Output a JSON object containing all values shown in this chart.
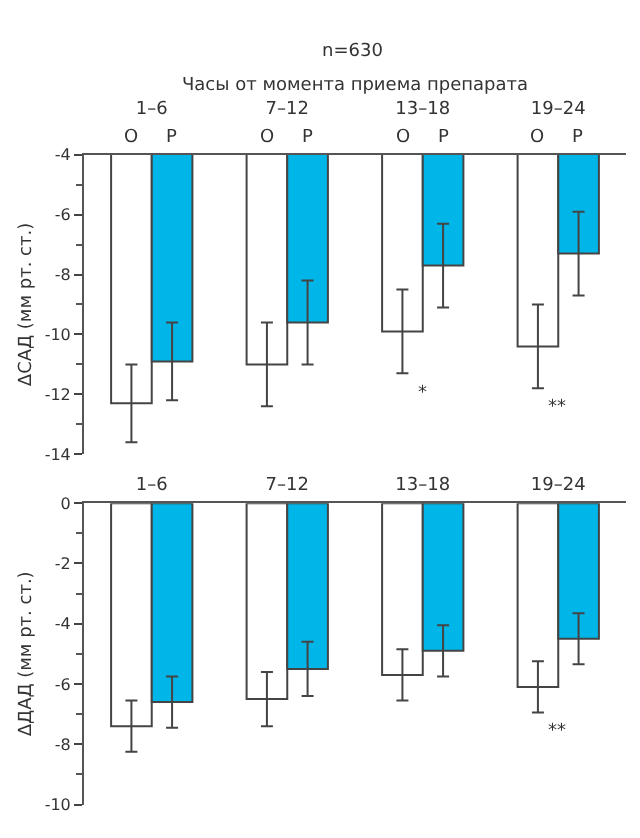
{
  "chart_data": [
    {
      "type": "bar",
      "title": "n=630",
      "xlabel": "Часы от момента приема препарата",
      "ylabel": "ΔСАД (мм рт. ст.)",
      "categories": [
        "1–6",
        "7–12",
        "13–18",
        "19–24"
      ],
      "series": [
        {
          "name": "O",
          "color": "#ffffff",
          "values": [
            -12.3,
            -11.0,
            -9.9,
            -10.4
          ],
          "errors": [
            1.3,
            1.4,
            1.4,
            1.4
          ]
        },
        {
          "name": "P",
          "color": "#00b5e8",
          "values": [
            -10.9,
            -9.6,
            -7.7,
            -7.3
          ],
          "errors": [
            1.3,
            1.4,
            1.4,
            1.4
          ]
        }
      ],
      "ylim": [
        -14,
        -4
      ],
      "yticks": [
        -14,
        -12,
        -10,
        -8,
        -6,
        -4
      ],
      "annotations": [
        "*",
        "**"
      ]
    },
    {
      "type": "bar",
      "ylabel": "ΔДАД (мм рт. ст.)",
      "categories": [
        "1–6",
        "7–12",
        "13–18",
        "19–24"
      ],
      "series": [
        {
          "color": "#ffffff",
          "values": [
            -7.4,
            -6.5,
            -5.7,
            -6.1
          ],
          "errors": [
            0.85,
            0.9,
            0.85,
            0.85
          ]
        },
        {
          "color": "#00b5e8",
          "values": [
            -6.6,
            -5.5,
            -4.9,
            -4.5
          ],
          "errors": [
            0.85,
            0.9,
            0.85,
            0.85
          ]
        }
      ],
      "ylim": [
        -10,
        0
      ],
      "yticks": [
        -10,
        -8,
        -6,
        -4,
        -2,
        0
      ],
      "annotations": [
        "**"
      ]
    }
  ]
}
